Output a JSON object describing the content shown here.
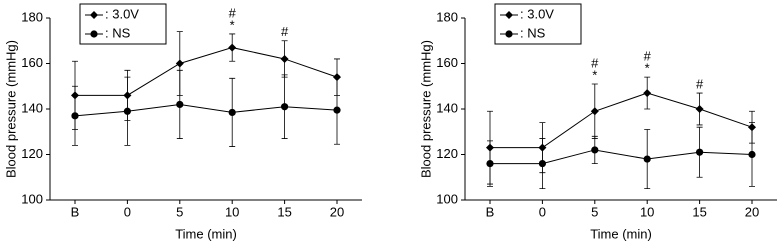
{
  "chart_data": [
    {
      "type": "line",
      "ylabel": "Blood pressure (mmHg)",
      "xlabel": "Time (min)",
      "categories": [
        "B",
        "0",
        "5",
        "10",
        "15",
        "20"
      ],
      "ylim": [
        100,
        180
      ],
      "yticks": [
        100,
        120,
        140,
        160,
        180
      ],
      "legend": "upper left",
      "series": [
        {
          "name": ": 3.0V",
          "color": "#000000",
          "marker": "diamond",
          "values": [
            146,
            146,
            160,
            167,
            162,
            154
          ],
          "errors": [
            15,
            11,
            14,
            6,
            8,
            8
          ]
        },
        {
          "name": ": NS",
          "color": "#000000",
          "marker": "circle",
          "values": [
            137,
            139,
            142,
            138.5,
            141,
            139.5
          ],
          "errors": [
            13,
            15,
            15,
            15,
            14,
            15
          ]
        }
      ],
      "annotations": [
        {
          "category": "10",
          "labels": [
            "#",
            "*"
          ]
        },
        {
          "category": "15",
          "labels": [
            "#"
          ]
        }
      ]
    },
    {
      "type": "line",
      "ylabel": "Blood pressure (mmHg)",
      "xlabel": "Time (min)",
      "categories": [
        "B",
        "0",
        "5",
        "10",
        "15",
        "20"
      ],
      "ylim": [
        100,
        180
      ],
      "yticks": [
        100,
        120,
        140,
        160,
        180
      ],
      "legend": "upper left",
      "series": [
        {
          "name": ": 3.0V",
          "color": "#000000",
          "marker": "diamond",
          "values": [
            123,
            123,
            139,
            147,
            140,
            132
          ],
          "errors": [
            16,
            11,
            12,
            7,
            7,
            7
          ]
        },
        {
          "name": ": NS",
          "color": "#000000",
          "marker": "circle",
          "values": [
            116,
            116,
            122,
            118,
            121,
            120
          ],
          "errors": [
            10,
            11,
            6,
            13,
            11,
            14
          ]
        }
      ],
      "annotations": [
        {
          "category": "5",
          "labels": [
            "#",
            "*"
          ]
        },
        {
          "category": "10",
          "labels": [
            "#",
            "*"
          ]
        },
        {
          "category": "15",
          "labels": [
            "#"
          ]
        }
      ]
    }
  ]
}
